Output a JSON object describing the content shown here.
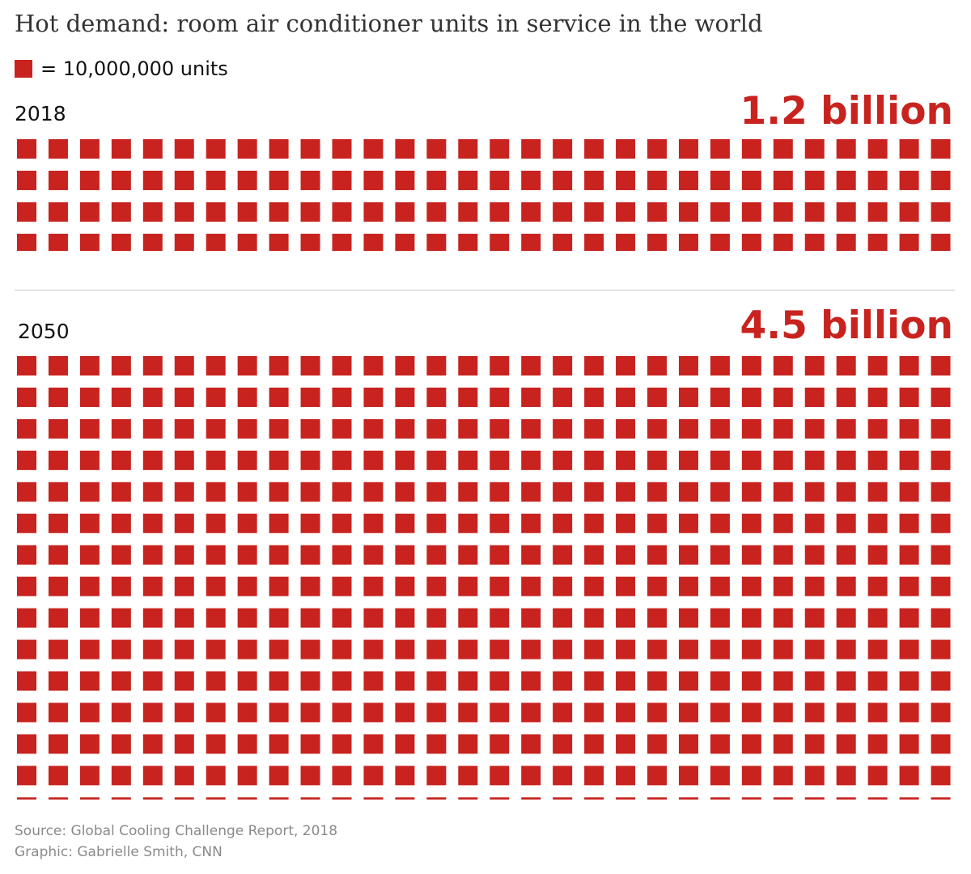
{
  "chart_data": {
    "type": "waffle",
    "title": "Hot demand: room air conditioner units in service in the world",
    "legend": {
      "label": "= 10,000,000 units",
      "unit_value": 10000000
    },
    "columns": 30,
    "color": "#c8231f",
    "series": [
      {
        "year": "2018",
        "total_label": "1.2 billion",
        "value": 1200000000,
        "squares": 120
      },
      {
        "year": "2050",
        "total_label": "4.5 billion",
        "value": 4500000000,
        "squares": 450
      }
    ],
    "source": "Source: Global Cooling Challenge Report, 2018",
    "credit": "Graphic: Gabrielle Smith, CNN"
  }
}
